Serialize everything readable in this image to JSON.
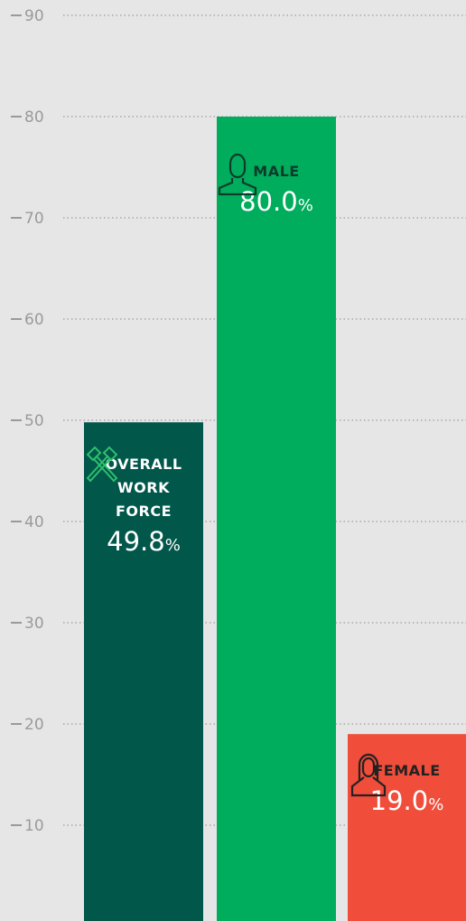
{
  "chart_data": {
    "type": "bar",
    "categories": [
      "OVERALL WORK FORCE",
      "MALE",
      "FEMALE"
    ],
    "values": [
      49.8,
      80.0,
      19.0
    ],
    "value_labels": [
      "49.8%",
      "80.0%",
      "19.0%"
    ],
    "colors": [
      "#00574a",
      "#00ad5c",
      "#f04d3a"
    ],
    "ylim": [
      0,
      90
    ],
    "yticks": [
      10,
      20,
      30,
      40,
      50,
      60,
      70,
      80,
      90
    ],
    "grid": true
  }
}
